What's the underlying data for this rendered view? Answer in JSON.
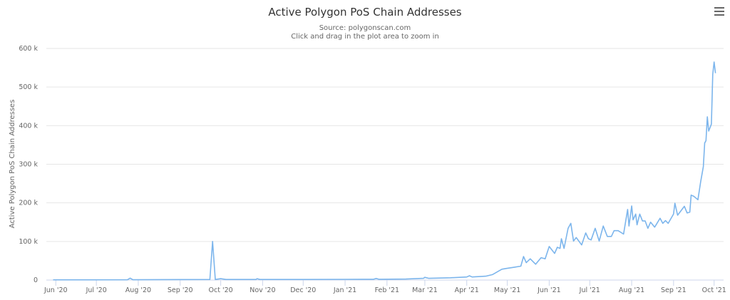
{
  "chart_data": {
    "type": "line",
    "title": "Active Polygon PoS Chain Addresses",
    "subtitle": "Source: polygonscan.com",
    "hint": "Click and drag in the plot area to zoom in",
    "xlabel": "",
    "ylabel": "Active Polygon PoS Chain Addresses",
    "ylim": [
      0,
      600000
    ],
    "xlim": [
      "2020-05-25",
      "2021-10-08"
    ],
    "grid": true,
    "legend": "none",
    "line_color": "#7cb5ec",
    "y_ticks": [
      {
        "value": 0,
        "label": "0"
      },
      {
        "value": 100000,
        "label": "100 k"
      },
      {
        "value": 200000,
        "label": "200 k"
      },
      {
        "value": 300000,
        "label": "300 k"
      },
      {
        "value": 400000,
        "label": "400 k"
      },
      {
        "value": 500000,
        "label": "500 k"
      },
      {
        "value": 600000,
        "label": "600 k"
      }
    ],
    "x_ticks": [
      {
        "date": "2020-06-01",
        "label": "Jun '20"
      },
      {
        "date": "2020-07-01",
        "label": "Jul '20"
      },
      {
        "date": "2020-08-01",
        "label": "Aug '20"
      },
      {
        "date": "2020-09-01",
        "label": "Sep '20"
      },
      {
        "date": "2020-10-01",
        "label": "Oct '20"
      },
      {
        "date": "2020-11-01",
        "label": "Nov '20"
      },
      {
        "date": "2020-12-01",
        "label": "Dec '20"
      },
      {
        "date": "2021-01-01",
        "label": "Jan '21"
      },
      {
        "date": "2021-02-01",
        "label": "Feb '21"
      },
      {
        "date": "2021-03-01",
        "label": "Mar '21"
      },
      {
        "date": "2021-04-01",
        "label": "Apr '21"
      },
      {
        "date": "2021-05-01",
        "label": "May '21"
      },
      {
        "date": "2021-06-01",
        "label": "Jun '21"
      },
      {
        "date": "2021-07-01",
        "label": "Jul '21"
      },
      {
        "date": "2021-08-01",
        "label": "Aug '21"
      },
      {
        "date": "2021-09-01",
        "label": "Sep '21"
      },
      {
        "date": "2021-10-01",
        "label": "Oct '21"
      }
    ],
    "series": [
      {
        "points": [
          [
            "2020-05-30",
            500
          ],
          [
            "2020-07-24",
            800
          ],
          [
            "2020-07-26",
            5000
          ],
          [
            "2020-07-28",
            800
          ],
          [
            "2020-09-23",
            1500
          ],
          [
            "2020-09-25",
            100000
          ],
          [
            "2020-09-27",
            1500
          ],
          [
            "2020-10-01",
            3500
          ],
          [
            "2020-10-05",
            1500
          ],
          [
            "2020-10-27",
            1500
          ],
          [
            "2020-10-28",
            3500
          ],
          [
            "2020-10-30",
            1500
          ],
          [
            "2020-12-01",
            1500
          ],
          [
            "2021-01-01",
            1800
          ],
          [
            "2021-01-22",
            2000
          ],
          [
            "2021-01-24",
            4000
          ],
          [
            "2021-01-26",
            2000
          ],
          [
            "2021-02-15",
            2500
          ],
          [
            "2021-02-28",
            4500
          ],
          [
            "2021-03-01",
            7000
          ],
          [
            "2021-03-04",
            4500
          ],
          [
            "2021-03-20",
            6000
          ],
          [
            "2021-04-01",
            8000
          ],
          [
            "2021-04-03",
            11000
          ],
          [
            "2021-04-05",
            8000
          ],
          [
            "2021-04-15",
            10000
          ],
          [
            "2021-04-20",
            14000
          ],
          [
            "2021-04-24",
            22000
          ],
          [
            "2021-04-27",
            28000
          ],
          [
            "2021-04-30",
            30000
          ],
          [
            "2021-05-06",
            33000
          ],
          [
            "2021-05-11",
            36000
          ],
          [
            "2021-05-13",
            61000
          ],
          [
            "2021-05-15",
            45000
          ],
          [
            "2021-05-18",
            55000
          ],
          [
            "2021-05-22",
            41000
          ],
          [
            "2021-05-26",
            58000
          ],
          [
            "2021-05-29",
            55000
          ],
          [
            "2021-06-01",
            87000
          ],
          [
            "2021-06-05",
            69000
          ],
          [
            "2021-06-07",
            85000
          ],
          [
            "2021-06-09",
            82000
          ],
          [
            "2021-06-10",
            107000
          ],
          [
            "2021-06-12",
            82000
          ],
          [
            "2021-06-15",
            134000
          ],
          [
            "2021-06-17",
            147000
          ],
          [
            "2021-06-19",
            101000
          ],
          [
            "2021-06-21",
            110000
          ],
          [
            "2021-06-25",
            91000
          ],
          [
            "2021-06-28",
            122000
          ],
          [
            "2021-06-30",
            107000
          ],
          [
            "2021-07-02",
            104000
          ],
          [
            "2021-07-05",
            134000
          ],
          [
            "2021-07-08",
            101000
          ],
          [
            "2021-07-11",
            140000
          ],
          [
            "2021-07-14",
            113000
          ],
          [
            "2021-07-17",
            113000
          ],
          [
            "2021-07-19",
            128000
          ],
          [
            "2021-07-22",
            128000
          ],
          [
            "2021-07-26",
            119000
          ],
          [
            "2021-07-29",
            183000
          ],
          [
            "2021-07-30",
            140000
          ],
          [
            "2021-08-01",
            192000
          ],
          [
            "2021-08-02",
            156000
          ],
          [
            "2021-08-04",
            171000
          ],
          [
            "2021-08-05",
            143000
          ],
          [
            "2021-08-07",
            171000
          ],
          [
            "2021-08-09",
            153000
          ],
          [
            "2021-08-11",
            153000
          ],
          [
            "2021-08-13",
            134000
          ],
          [
            "2021-08-15",
            150000
          ],
          [
            "2021-08-18",
            137000
          ],
          [
            "2021-08-22",
            160000
          ],
          [
            "2021-08-24",
            147000
          ],
          [
            "2021-08-26",
            154000
          ],
          [
            "2021-08-28",
            147000
          ],
          [
            "2021-09-01",
            171000
          ],
          [
            "2021-09-02",
            199000
          ],
          [
            "2021-09-04",
            168000
          ],
          [
            "2021-09-09",
            191000
          ],
          [
            "2021-09-11",
            174000
          ],
          [
            "2021-09-13",
            176000
          ],
          [
            "2021-09-14",
            220000
          ],
          [
            "2021-09-16",
            217000
          ],
          [
            "2021-09-19",
            208000
          ],
          [
            "2021-09-21",
            254000
          ],
          [
            "2021-09-23",
            294000
          ],
          [
            "2021-09-24",
            355000
          ],
          [
            "2021-09-25",
            361000
          ],
          [
            "2021-09-26",
            423000
          ],
          [
            "2021-09-27",
            386000
          ],
          [
            "2021-09-29",
            404000
          ],
          [
            "2021-09-30",
            533000
          ],
          [
            "2021-10-01",
            565000
          ],
          [
            "2021-10-02",
            536000
          ]
        ]
      }
    ]
  },
  "menu_icon": "hamburger-menu-icon"
}
